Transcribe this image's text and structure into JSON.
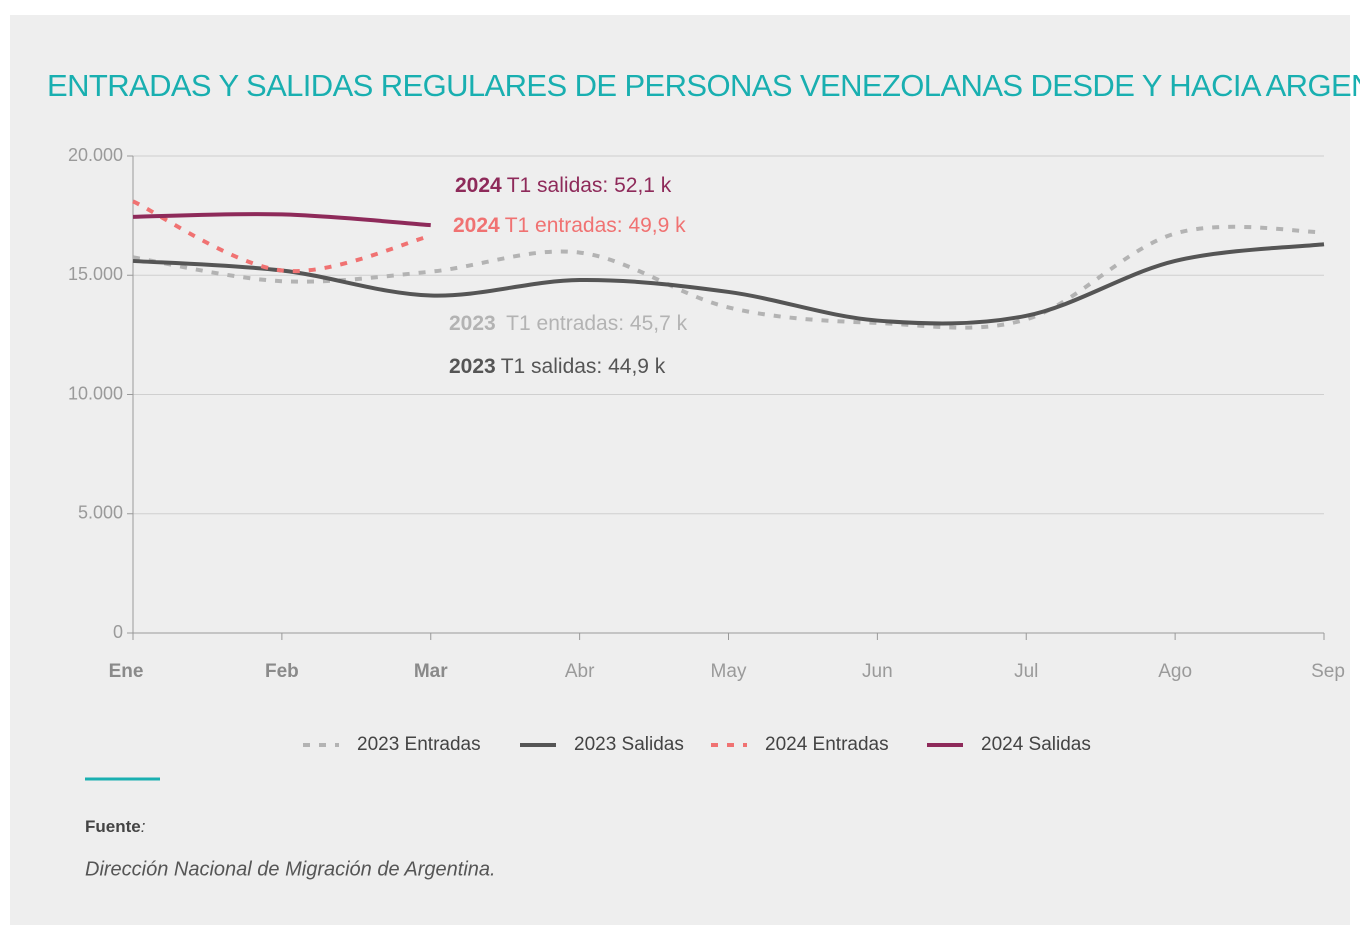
{
  "chart_data": {
    "type": "line",
    "title": "ENTRADAS Y SALIDAS REGULARES DE PERSONAS VENEZOLANAS DESDE Y HACIA ARGENTINA",
    "categories": [
      "Ene",
      "Feb",
      "Mar",
      "Abr",
      "May",
      "Jun",
      "Jul",
      "Ago",
      "Sep"
    ],
    "bold_categories": 3,
    "series": [
      {
        "name": "2023 Entradas",
        "color": "#b3b3b3",
        "dashed": true,
        "values": [
          15750,
          14750,
          15150,
          15950,
          13650,
          13000,
          13150,
          16750,
          16800
        ]
      },
      {
        "name": "2023 Salidas",
        "color": "#555555",
        "dashed": false,
        "values": [
          15600,
          15200,
          14150,
          14800,
          14300,
          13100,
          13300,
          15600,
          16300
        ]
      },
      {
        "name": "2024 Entradas",
        "color": "#f07272",
        "dashed": true,
        "values": [
          18100,
          15200,
          16650,
          null,
          null,
          null,
          null,
          null,
          null
        ]
      },
      {
        "name": "2024 Salidas",
        "color": "#8e2a5a",
        "dashed": false,
        "values": [
          17450,
          17550,
          17100,
          null,
          null,
          null,
          null,
          null,
          null
        ]
      }
    ],
    "ylim": [
      0,
      20000
    ],
    "yticks": [
      0,
      {
        "value": 5000,
        "label": "5.000"
      },
      {
        "value": 10000,
        "label": "10.000"
      },
      {
        "value": 15000,
        "label": "15.000"
      },
      {
        "value": 20000,
        "label": "20.000"
      }
    ],
    "grid": true,
    "legend": "bottom",
    "annotations": [
      {
        "year": "2024",
        "text": "T1 salidas: 52,1 k",
        "color": "#8e2a5a"
      },
      {
        "year": "2024",
        "text": "T1 entradas: 49,9 k",
        "color": "#f07272"
      },
      {
        "year": "2023",
        "text": " T1 entradas: 45,7 k",
        "color": "#b3b3b3"
      },
      {
        "year": "2023",
        "text": "T1 salidas: 44,9 k",
        "color": "#555555"
      }
    ],
    "source_heading": [
      "Fuente",
      ":"
    ],
    "source": "Dirección Nacional de Migración de Argentina."
  }
}
